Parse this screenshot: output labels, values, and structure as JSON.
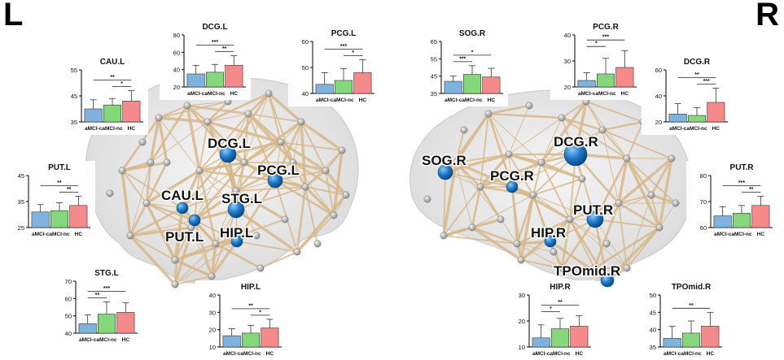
{
  "hemispheres": {
    "left": "L",
    "right": "R"
  },
  "colors": {
    "acmi_c": "#7fb2dd",
    "acmi_nc": "#86d67c",
    "hc": "#f58a8a",
    "edge": "#d8b88a",
    "node": "#1f78c8",
    "brain": "#e2e2e2"
  },
  "node_labels": [
    "DCG.L",
    "PCG.L",
    "CAU.L",
    "STG.L",
    "PUT.L",
    "HIP.L",
    "DCG.R",
    "SOG.R",
    "PCG.R",
    "PUT.R",
    "HIP.R",
    "TPOmid.R"
  ],
  "chart_data": [
    {
      "id": "CAU.L",
      "type": "bar",
      "title": "CAU.L",
      "categories": [
        "aMCI-c",
        "aMCI-nc",
        "HC"
      ],
      "values": [
        40,
        41.5,
        43
      ],
      "errors": [
        3.5,
        2.5,
        4
      ],
      "ylim": [
        35,
        55
      ],
      "yticks": [
        35,
        45,
        55
      ],
      "sig": [
        {
          "from": 0,
          "to": 2,
          "label": "**"
        },
        {
          "from": 1,
          "to": 2,
          "label": "*"
        }
      ]
    },
    {
      "id": "DCG.L",
      "type": "bar",
      "title": "DCG.L",
      "categories": [
        "aMCI-c",
        "aMCI-nc",
        "HC"
      ],
      "values": [
        35,
        37,
        45
      ],
      "errors": [
        10,
        9,
        11
      ],
      "ylim": [
        20,
        80
      ],
      "yticks": [
        20,
        40,
        60,
        80
      ],
      "sig": [
        {
          "from": 0,
          "to": 2,
          "label": "***"
        },
        {
          "from": 1,
          "to": 2,
          "label": "**"
        }
      ]
    },
    {
      "id": "PCG.L",
      "type": "bar",
      "title": "PCG.L",
      "categories": [
        "aMCI-c",
        "aMCI-nc",
        "HC"
      ],
      "values": [
        43.5,
        45,
        48
      ],
      "errors": [
        4.5,
        4.5,
        5
      ],
      "ylim": [
        40,
        60
      ],
      "yticks": [
        40,
        50,
        60
      ],
      "sig": [
        {
          "from": 0,
          "to": 2,
          "label": "***"
        },
        {
          "from": 1,
          "to": 2,
          "label": "*"
        }
      ]
    },
    {
      "id": "PUT.L",
      "type": "bar",
      "title": "PUT.L",
      "categories": [
        "aMCI-c",
        "aMCI-nc",
        "HC"
      ],
      "values": [
        31,
        31.5,
        33.5
      ],
      "errors": [
        2.8,
        3,
        3.5
      ],
      "ylim": [
        25,
        45
      ],
      "yticks": [
        25,
        35,
        45
      ],
      "sig": [
        {
          "from": 0,
          "to": 2,
          "label": "**"
        },
        {
          "from": 1,
          "to": 2,
          "label": "**"
        }
      ]
    },
    {
      "id": "STG.L",
      "type": "bar",
      "title": "STG.L",
      "categories": [
        "aMCI-c",
        "aMCI-nc",
        "HC"
      ],
      "values": [
        45.5,
        51,
        52
      ],
      "errors": [
        5,
        7,
        5.5
      ],
      "ylim": [
        40,
        70
      ],
      "yticks": [
        40,
        50,
        60,
        70
      ],
      "sig": [
        {
          "from": 0,
          "to": 2,
          "label": "***"
        },
        {
          "from": 0,
          "to": 1,
          "label": "**"
        }
      ]
    },
    {
      "id": "HIP.L",
      "type": "bar",
      "title": "HIP.L",
      "categories": [
        "aMCI-c",
        "aMCI-nc",
        "HC"
      ],
      "values": [
        16.5,
        18,
        21
      ],
      "errors": [
        4,
        4.5,
        5
      ],
      "ylim": [
        10,
        40
      ],
      "yticks": [
        10,
        20,
        30,
        40
      ],
      "sig": [
        {
          "from": 0,
          "to": 2,
          "label": "**"
        },
        {
          "from": 1,
          "to": 2,
          "label": "*"
        }
      ]
    },
    {
      "id": "SOG.R",
      "type": "bar",
      "title": "SOG.R",
      "categories": [
        "aMCI-c",
        "aMCI-nc",
        "HC"
      ],
      "values": [
        42,
        46,
        44.5
      ],
      "errors": [
        3,
        5,
        5
      ],
      "ylim": [
        35,
        65
      ],
      "yticks": [
        35,
        45,
        55,
        65
      ],
      "sig": [
        {
          "from": 0,
          "to": 2,
          "label": "*"
        },
        {
          "from": 0,
          "to": 1,
          "label": "***"
        }
      ]
    },
    {
      "id": "PCG.R",
      "type": "bar",
      "title": "PCG.R",
      "categories": [
        "aMCI-c",
        "aMCI-nc",
        "HC"
      ],
      "values": [
        22.5,
        25,
        27.5
      ],
      "errors": [
        3,
        6,
        6.5
      ],
      "ylim": [
        20,
        40
      ],
      "yticks": [
        20,
        30,
        40
      ],
      "sig": [
        {
          "from": 0,
          "to": 2,
          "label": "***"
        },
        {
          "from": 0,
          "to": 1,
          "label": "*"
        }
      ]
    },
    {
      "id": "DCG.R",
      "type": "bar",
      "title": "DCG.R",
      "categories": [
        "aMCI-c",
        "aMCI-nc",
        "HC"
      ],
      "values": [
        26,
        25,
        35
      ],
      "errors": [
        8,
        6,
        11
      ],
      "ylim": [
        20,
        60
      ],
      "yticks": [
        20,
        40,
        60
      ],
      "sig": [
        {
          "from": 0,
          "to": 2,
          "label": "**"
        },
        {
          "from": 1,
          "to": 2,
          "label": "***"
        }
      ]
    },
    {
      "id": "PUT.R",
      "type": "bar",
      "title": "PUT.R",
      "categories": [
        "aMCI-c",
        "aMCI-nc",
        "HC"
      ],
      "values": [
        64.5,
        65.5,
        68.5
      ],
      "errors": [
        3.5,
        3,
        3.5
      ],
      "ylim": [
        60,
        80
      ],
      "yticks": [
        60,
        70,
        80
      ],
      "sig": [
        {
          "from": 0,
          "to": 2,
          "label": "***"
        },
        {
          "from": 1,
          "to": 2,
          "label": "**"
        }
      ]
    },
    {
      "id": "HIP.R",
      "type": "bar",
      "title": "HIP.R",
      "categories": [
        "aMCI-c",
        "aMCI-nc",
        "HC"
      ],
      "values": [
        13.5,
        17,
        18
      ],
      "errors": [
        5,
        4,
        4
      ],
      "ylim": [
        10,
        30
      ],
      "yticks": [
        10,
        20,
        30
      ],
      "sig": [
        {
          "from": 0,
          "to": 2,
          "label": "**"
        },
        {
          "from": 0,
          "to": 1,
          "label": "*"
        }
      ]
    },
    {
      "id": "TPOmid.R",
      "type": "bar",
      "title": "TPOmid.R",
      "categories": [
        "aMCI-c",
        "aMCI-nc",
        "HC"
      ],
      "values": [
        37.5,
        39,
        41
      ],
      "errors": [
        3.5,
        3.5,
        4
      ],
      "ylim": [
        35,
        50
      ],
      "yticks": [
        35,
        40,
        45,
        50
      ],
      "sig": [
        {
          "from": 0,
          "to": 2,
          "label": "**"
        }
      ]
    }
  ]
}
